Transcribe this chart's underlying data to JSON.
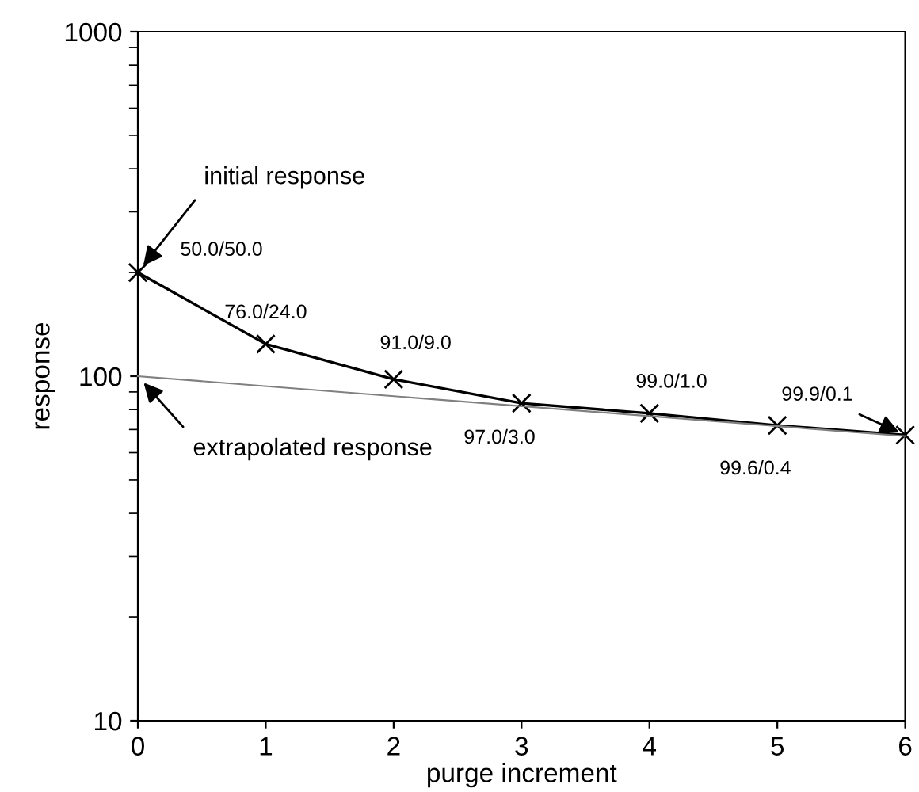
{
  "chart_data": {
    "type": "line",
    "xlabel": "purge increment",
    "ylabel": "response",
    "x": [
      0,
      1,
      2,
      3,
      4,
      5,
      6
    ],
    "series": [
      {
        "color": "#000000",
        "marker": "cross",
        "values": [
          200,
          124,
          98,
          83.5,
          78,
          72,
          67.5
        ],
        "value_labels": [
          "50.0/50.0",
          "76.0/24.0",
          "91.0/9.0",
          "97.0/3.0",
          "99.0/1.0",
          "99.6/0.4",
          "99.9/0.1"
        ]
      },
      {
        "color": "#808080",
        "marker": "none",
        "x": [
          0,
          6
        ],
        "values": [
          100,
          67
        ]
      }
    ],
    "log": "y",
    "xlim": [
      0,
      6
    ],
    "xticks": [
      0,
      1,
      2,
      3,
      4,
      5,
      6
    ],
    "ylim": [
      10,
      1000
    ],
    "yticks": [
      10,
      100,
      1000
    ],
    "grid": false,
    "legend": false,
    "annotations": [
      {
        "text": "initial response",
        "x": 0,
        "y": 200
      },
      {
        "text": "extrapolated response",
        "x": 0,
        "y": 100
      }
    ]
  }
}
